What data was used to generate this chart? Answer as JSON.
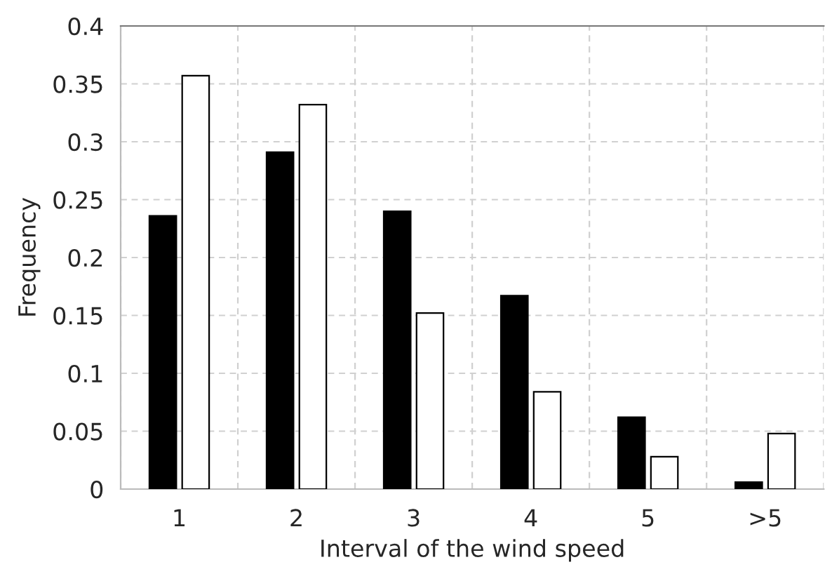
{
  "chart_data": {
    "type": "bar",
    "xlabel": "Interval of the wind speed",
    "ylabel": "Frequency",
    "categories": [
      "1",
      "2",
      "3",
      "4",
      "5",
      ">5"
    ],
    "series": [
      {
        "color": "#000000",
        "values": [
          0.236,
          0.291,
          0.24,
          0.167,
          0.062,
          0.006
        ]
      },
      {
        "color": "#ffffff",
        "values": [
          0.357,
          0.332,
          0.152,
          0.084,
          0.028,
          0.048
        ]
      }
    ],
    "ylim": [
      0,
      0.4
    ],
    "yticks": [
      0,
      0.05,
      0.1,
      0.15,
      0.2,
      0.25,
      0.3,
      0.35,
      0.4
    ],
    "grid": true
  }
}
